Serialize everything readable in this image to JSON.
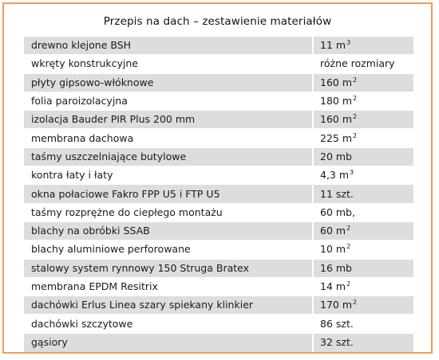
{
  "title": "Przepis na dach – zestawienie materiałów",
  "rows": [
    {
      "name": "drewno klejone BSH",
      "qty": "11 m",
      "unit_sup": "3"
    },
    {
      "name": "wkręty konstrukcyjne",
      "qty": "różne rozmiary",
      "unit_sup": ""
    },
    {
      "name": "płyty gipsowo-włóknowe",
      "qty": "160 m",
      "unit_sup": "2"
    },
    {
      "name": "folia paroizolacyjna",
      "qty": "180 m",
      "unit_sup": "2"
    },
    {
      "name": "izolacja Bauder PIR Plus 200 mm",
      "qty": "160 m",
      "unit_sup": "2"
    },
    {
      "name": "membrana dachowa",
      "qty": "225 m",
      "unit_sup": "2"
    },
    {
      "name": "taśmy uszczelniające butylowe",
      "qty": "20 mb",
      "unit_sup": ""
    },
    {
      "name": "kontra łaty i łaty",
      "qty": "4,3 m",
      "unit_sup": "3"
    },
    {
      "name": "okna połaciowe Fakro FPP U5 i FTP U5",
      "qty": "11 szt.",
      "unit_sup": ""
    },
    {
      "name": "taśmy rozprężne do ciepłego montażu",
      "qty": "60 mb,",
      "unit_sup": ""
    },
    {
      "name": "blachy na obróbki SSAB",
      "qty": "60 m",
      "unit_sup": "2"
    },
    {
      "name": "blachy aluminiowe perforowane",
      "qty": "10 m",
      "unit_sup": "2"
    },
    {
      "name": "stalowy system rynnowy 150 Struga Bratex",
      "qty": "16 mb",
      "unit_sup": ""
    },
    {
      "name": "membrana EPDM Resitrix",
      "qty": "14 m",
      "unit_sup": "2"
    },
    {
      "name": "dachówki Erlus Linea szary spiekany klinkier",
      "qty": "170 m",
      "unit_sup": "2"
    },
    {
      "name": "dachówki szczytowe",
      "qty": "86 szt.",
      "unit_sup": ""
    },
    {
      "name": "gąsiory",
      "qty": "32 szt.",
      "unit_sup": ""
    }
  ],
  "colors": {
    "border": "#f29a55",
    "row_shade": "#dddddd",
    "row_plain": "#ffffff"
  }
}
